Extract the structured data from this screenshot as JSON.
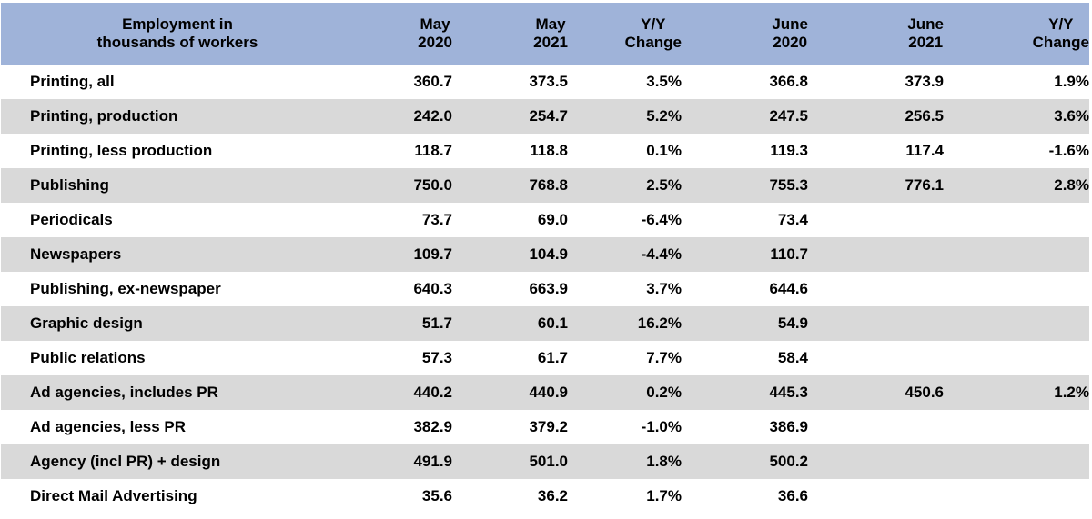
{
  "table": {
    "headers": [
      [
        "Employment in",
        "thousands of workers"
      ],
      [
        "May",
        "2020"
      ],
      [
        "May",
        "2021"
      ],
      [
        "Y/Y",
        "Change"
      ],
      [
        "June",
        "2020"
      ],
      [
        "June",
        "2021"
      ],
      [
        "Y/Y",
        "Change"
      ]
    ],
    "rows": [
      [
        "Printing, all",
        "360.7",
        "373.5",
        "3.5%",
        "366.8",
        "373.9",
        "1.9%"
      ],
      [
        "Printing, production",
        "242.0",
        "254.7",
        "5.2%",
        "247.5",
        "256.5",
        "3.6%"
      ],
      [
        "Printing, less production",
        "118.7",
        "118.8",
        "0.1%",
        "119.3",
        "117.4",
        "-1.6%"
      ],
      [
        "Publishing",
        "750.0",
        "768.8",
        "2.5%",
        "755.3",
        "776.1",
        "2.8%"
      ],
      [
        "Periodicals",
        "73.7",
        "69.0",
        "-6.4%",
        "73.4",
        "",
        ""
      ],
      [
        "Newspapers",
        "109.7",
        "104.9",
        "-4.4%",
        "110.7",
        "",
        ""
      ],
      [
        "Publishing, ex-newspaper",
        "640.3",
        "663.9",
        "3.7%",
        "644.6",
        "",
        ""
      ],
      [
        "Graphic design",
        "51.7",
        "60.1",
        "16.2%",
        "54.9",
        "",
        ""
      ],
      [
        "Public relations",
        "57.3",
        "61.7",
        "7.7%",
        "58.4",
        "",
        ""
      ],
      [
        "Ad agencies, includes PR",
        "440.2",
        "440.9",
        "0.2%",
        "445.3",
        "450.6",
        "1.2%"
      ],
      [
        "Ad agencies, less PR",
        "382.9",
        "379.2",
        "-1.0%",
        "386.9",
        "",
        ""
      ],
      [
        "Agency (incl PR) + design",
        "491.9",
        "501.0",
        "1.8%",
        "500.2",
        "",
        ""
      ],
      [
        "Direct Mail Advertising",
        "35.6",
        "36.2",
        "1.7%",
        "36.6",
        "",
        ""
      ]
    ]
  }
}
